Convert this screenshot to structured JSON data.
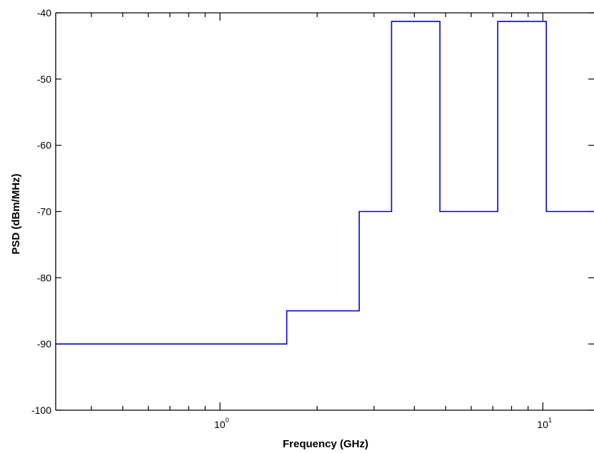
{
  "chart_data": {
    "type": "line",
    "step": true,
    "xlabel": "Frequency (GHz)",
    "ylabel": "PSD (dBm/MHz)",
    "xscale": "log",
    "xlim": [
      0.31,
      14.4
    ],
    "ylim": [
      -100,
      -40
    ],
    "yticks": [
      -40,
      -50,
      -60,
      -70,
      -80,
      -90,
      -100
    ],
    "ytick_labels": [
      "-40",
      "-50",
      "-60",
      "-70",
      "-80",
      "-90",
      "-100"
    ],
    "xticks_major": [
      {
        "value": 1,
        "base": "10",
        "exp": "0"
      },
      {
        "value": 10,
        "base": "10",
        "exp": "1"
      }
    ],
    "grid": false,
    "series": [
      {
        "color": "#0000ee",
        "x": [
          0.31,
          1.61,
          1.61,
          2.7,
          2.7,
          3.4,
          3.4,
          4.8,
          4.8,
          7.25,
          7.25,
          10.25,
          10.25,
          14.4
        ],
        "y": [
          -90,
          -90,
          -85,
          -85,
          -70,
          -70,
          -41.3,
          -41.3,
          -70,
          -70,
          -41.3,
          -41.3,
          -70,
          -70
        ]
      }
    ]
  }
}
